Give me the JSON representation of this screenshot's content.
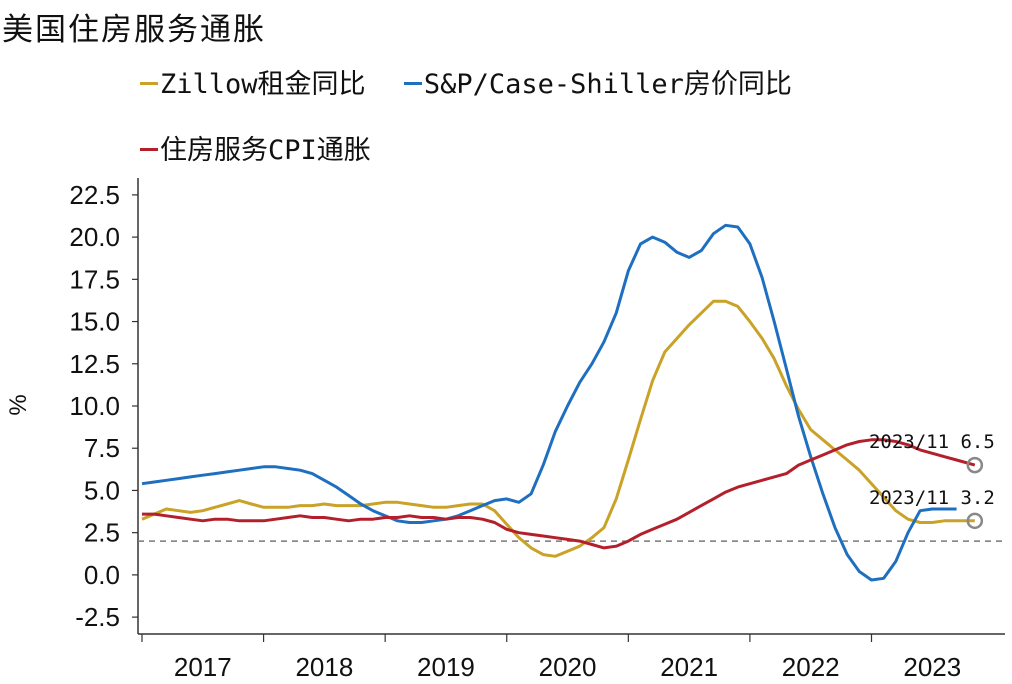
{
  "title": "美国住房服务通胀",
  "chart_data": {
    "type": "line",
    "ylabel": "%",
    "ylim": [
      -3.5,
      23.5
    ],
    "yticks": [
      "22.5",
      "20.0",
      "17.5",
      "15.0",
      "12.5",
      "10.0",
      "7.5",
      "5.0",
      "2.5",
      "0.0",
      "-2.5"
    ],
    "ytick_values": [
      22.5,
      20.0,
      17.5,
      15.0,
      12.5,
      10.0,
      7.5,
      5.0,
      2.5,
      0.0,
      -2.5
    ],
    "xticks": [
      "2017",
      "2018",
      "2019",
      "2020",
      "2021",
      "2022",
      "2023"
    ],
    "x_start": 2017.0,
    "x_end": 2023.95,
    "reference_line": 2.0,
    "series": [
      {
        "name": "Zillow租金同比",
        "color": "#c9a227",
        "x": [
          2017.0,
          2017.1,
          2017.2,
          2017.3,
          2017.4,
          2017.5,
          2017.6,
          2017.7,
          2017.8,
          2017.9,
          2018.0,
          2018.1,
          2018.2,
          2018.3,
          2018.4,
          2018.5,
          2018.6,
          2018.7,
          2018.8,
          2018.9,
          2019.0,
          2019.1,
          2019.2,
          2019.3,
          2019.4,
          2019.5,
          2019.6,
          2019.7,
          2019.8,
          2019.9,
          2020.0,
          2020.1,
          2020.2,
          2020.3,
          2020.4,
          2020.5,
          2020.6,
          2020.7,
          2020.8,
          2020.9,
          2021.0,
          2021.1,
          2021.2,
          2021.3,
          2021.4,
          2021.5,
          2021.6,
          2021.7,
          2021.8,
          2021.9,
          2022.0,
          2022.1,
          2022.2,
          2022.3,
          2022.4,
          2022.5,
          2022.6,
          2022.7,
          2022.8,
          2022.9,
          2023.0,
          2023.1,
          2023.2,
          2023.3,
          2023.4,
          2023.5,
          2023.6,
          2023.7,
          2023.85
        ],
        "values": [
          3.3,
          3.6,
          3.9,
          3.8,
          3.7,
          3.8,
          4.0,
          4.2,
          4.4,
          4.2,
          4.0,
          4.0,
          4.0,
          4.1,
          4.1,
          4.2,
          4.1,
          4.1,
          4.1,
          4.2,
          4.3,
          4.3,
          4.2,
          4.1,
          4.0,
          4.0,
          4.1,
          4.2,
          4.2,
          3.8,
          3.0,
          2.2,
          1.6,
          1.2,
          1.1,
          1.4,
          1.7,
          2.2,
          2.8,
          4.5,
          6.8,
          9.2,
          11.5,
          13.2,
          14.0,
          14.8,
          15.5,
          16.2,
          16.2,
          15.9,
          15.0,
          14.0,
          12.8,
          11.2,
          9.8,
          8.6,
          8.0,
          7.4,
          6.8,
          6.2,
          5.4,
          4.6,
          3.8,
          3.3,
          3.1,
          3.1,
          3.2,
          3.2,
          3.2
        ]
      },
      {
        "name": "S&P/Case-Shiller房价同比",
        "color": "#1f6fc0",
        "x": [
          2017.0,
          2017.1,
          2017.2,
          2017.3,
          2017.4,
          2017.5,
          2017.6,
          2017.7,
          2017.8,
          2017.9,
          2018.0,
          2018.1,
          2018.2,
          2018.3,
          2018.4,
          2018.5,
          2018.6,
          2018.7,
          2018.8,
          2018.9,
          2019.0,
          2019.1,
          2019.2,
          2019.3,
          2019.4,
          2019.5,
          2019.6,
          2019.7,
          2019.8,
          2019.9,
          2020.0,
          2020.1,
          2020.2,
          2020.3,
          2020.4,
          2020.5,
          2020.6,
          2020.7,
          2020.8,
          2020.9,
          2021.0,
          2021.1,
          2021.2,
          2021.3,
          2021.4,
          2021.5,
          2021.6,
          2021.7,
          2021.8,
          2021.9,
          2022.0,
          2022.1,
          2022.2,
          2022.3,
          2022.4,
          2022.5,
          2022.6,
          2022.7,
          2022.8,
          2022.9,
          2023.0,
          2023.1,
          2023.2,
          2023.3,
          2023.4,
          2023.5,
          2023.6,
          2023.7
        ],
        "values": [
          5.4,
          5.5,
          5.6,
          5.7,
          5.8,
          5.9,
          6.0,
          6.1,
          6.2,
          6.3,
          6.4,
          6.4,
          6.3,
          6.2,
          6.0,
          5.6,
          5.2,
          4.7,
          4.2,
          3.8,
          3.5,
          3.2,
          3.1,
          3.1,
          3.2,
          3.3,
          3.5,
          3.8,
          4.1,
          4.4,
          4.5,
          4.3,
          4.8,
          6.5,
          8.5,
          10.0,
          11.4,
          12.5,
          13.8,
          15.5,
          18.0,
          19.6,
          20.0,
          19.7,
          19.1,
          18.8,
          19.2,
          20.2,
          20.7,
          20.6,
          19.6,
          17.6,
          15.0,
          12.2,
          9.4,
          7.0,
          4.8,
          2.8,
          1.2,
          0.2,
          -0.3,
          -0.2,
          0.8,
          2.5,
          3.8,
          3.9,
          3.9,
          3.9
        ]
      },
      {
        "name": "住房服务CPI通胀",
        "color": "#b3202b",
        "x": [
          2017.0,
          2017.1,
          2017.2,
          2017.3,
          2017.4,
          2017.5,
          2017.6,
          2017.7,
          2017.8,
          2017.9,
          2018.0,
          2018.1,
          2018.2,
          2018.3,
          2018.4,
          2018.5,
          2018.6,
          2018.7,
          2018.8,
          2018.9,
          2019.0,
          2019.1,
          2019.2,
          2019.3,
          2019.4,
          2019.5,
          2019.6,
          2019.7,
          2019.8,
          2019.9,
          2020.0,
          2020.1,
          2020.2,
          2020.3,
          2020.4,
          2020.5,
          2020.6,
          2020.7,
          2020.8,
          2020.9,
          2021.0,
          2021.1,
          2021.2,
          2021.3,
          2021.4,
          2021.5,
          2021.6,
          2021.7,
          2021.8,
          2021.9,
          2022.0,
          2022.1,
          2022.2,
          2022.3,
          2022.4,
          2022.5,
          2022.6,
          2022.7,
          2022.8,
          2022.9,
          2023.0,
          2023.1,
          2023.2,
          2023.3,
          2023.4,
          2023.5,
          2023.6,
          2023.7,
          2023.85
        ],
        "values": [
          3.6,
          3.6,
          3.5,
          3.4,
          3.3,
          3.2,
          3.3,
          3.3,
          3.2,
          3.2,
          3.2,
          3.3,
          3.4,
          3.5,
          3.4,
          3.4,
          3.3,
          3.2,
          3.3,
          3.3,
          3.4,
          3.4,
          3.5,
          3.4,
          3.4,
          3.3,
          3.4,
          3.4,
          3.3,
          3.1,
          2.7,
          2.5,
          2.4,
          2.3,
          2.2,
          2.1,
          2.0,
          1.8,
          1.6,
          1.7,
          2.0,
          2.4,
          2.7,
          3.0,
          3.3,
          3.7,
          4.1,
          4.5,
          4.9,
          5.2,
          5.4,
          5.6,
          5.8,
          6.0,
          6.5,
          6.8,
          7.1,
          7.4,
          7.7,
          7.9,
          8.0,
          8.0,
          7.9,
          7.7,
          7.4,
          7.2,
          7.0,
          6.8,
          6.5
        ]
      }
    ],
    "annotations": [
      {
        "label": "2023/11 6.5",
        "series": 2
      },
      {
        "label": "2023/11 3.2",
        "series": 0
      }
    ]
  }
}
